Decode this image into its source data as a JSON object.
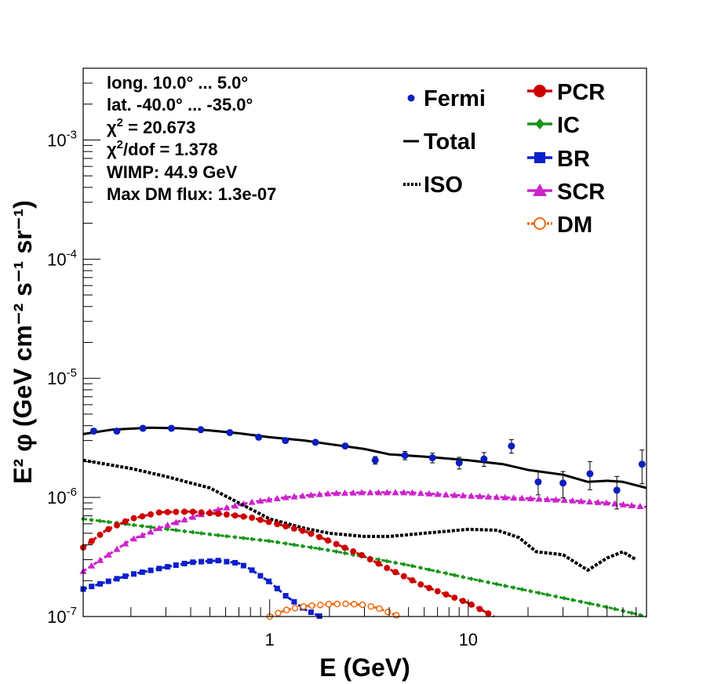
{
  "chart_data": {
    "type": "line",
    "xscale": "log",
    "yscale": "log",
    "xlim": [
      0.115,
      79
    ],
    "ylim": [
      1e-07,
      0.004
    ],
    "xlabel": "E (GeV)",
    "ylabel": "E² φ (GeV cm⁻² s⁻¹ sr⁻¹)",
    "x_tick_labels": [
      {
        "value": 1,
        "label": "1"
      },
      {
        "value": 10,
        "label": "10"
      }
    ],
    "y_tick_labels": [
      {
        "value": 1e-07,
        "label": "10",
        "exp": "-7"
      },
      {
        "value": 1e-06,
        "label": "10",
        "exp": "-6"
      },
      {
        "value": 1e-05,
        "label": "10",
        "exp": "-5"
      },
      {
        "value": 0.0001,
        "label": "10",
        "exp": "-4"
      },
      {
        "value": 0.001,
        "label": "10",
        "exp": "-3"
      }
    ],
    "info": {
      "longitude": "long. 10.0° ... 5.0°",
      "latitude": "lat. -40.0° ... -35.0°",
      "chi2_sym": "χ",
      "chi2_sup": "2",
      "chi2_rest": " = 20.673",
      "chidof_sym": "χ",
      "chidof_sup": "2",
      "chidof_rest": "/dof = 1.378",
      "wimp": "WIMP: 44.9 GeV",
      "max_dm": "Max DM flux: 1.3e-07"
    },
    "legend": [
      {
        "key": "fermi",
        "label": "Fermi",
        "color": "#0b1fbf",
        "style": "point"
      },
      {
        "key": "total",
        "label": "Total",
        "color": "#000000",
        "style": "line"
      },
      {
        "key": "iso",
        "label": "ISO",
        "color": "#000000",
        "style": "dotted"
      },
      {
        "key": "pcr",
        "label": "PCR",
        "color": "#cc0000",
        "style": "circle"
      },
      {
        "key": "ic",
        "label": "IC",
        "color": "#189418",
        "style": "diamond"
      },
      {
        "key": "br",
        "label": "BR",
        "color": "#0b1fcc",
        "style": "square"
      },
      {
        "key": "scr",
        "label": "SCR",
        "color": "#cc22cc",
        "style": "triangle"
      },
      {
        "key": "dm",
        "label": "DM",
        "color": "#ee6a10",
        "style": "opencircle"
      }
    ],
    "fermi": {
      "name": "Fermi",
      "color": "#0b1fbf",
      "points": [
        {
          "x": 0.13,
          "y": 3.6e-06,
          "err": 1.2e-07
        },
        {
          "x": 0.17,
          "y": 3.6e-06,
          "err": 1.2e-07
        },
        {
          "x": 0.23,
          "y": 3.8e-06,
          "err": 1.2e-07
        },
        {
          "x": 0.32,
          "y": 3.8e-06,
          "err": 1.2e-07
        },
        {
          "x": 0.45,
          "y": 3.7e-06,
          "err": 1.2e-07
        },
        {
          "x": 0.63,
          "y": 3.5e-06,
          "err": 1.2e-07
        },
        {
          "x": 0.88,
          "y": 3.2e-06,
          "err": 1.2e-07
        },
        {
          "x": 1.2,
          "y": 3e-06,
          "err": 1.2e-07
        },
        {
          "x": 1.7,
          "y": 2.9e-06,
          "err": 1.2e-07
        },
        {
          "x": 2.4,
          "y": 2.7e-06,
          "err": 1.2e-07
        },
        {
          "x": 3.4,
          "y": 2.05e-06,
          "err": 1.5e-07
        },
        {
          "x": 4.8,
          "y": 2.25e-06,
          "err": 1.8e-07
        },
        {
          "x": 6.6,
          "y": 2.15e-06,
          "err": 2e-07
        },
        {
          "x": 9.0,
          "y": 1.95e-06,
          "err": 2.2e-07
        },
        {
          "x": 12.0,
          "y": 2.1e-06,
          "err": 2.8e-07
        },
        {
          "x": 16.5,
          "y": 2.7e-06,
          "err": 3.5e-07
        },
        {
          "x": 22.5,
          "y": 1.35e-06,
          "err": 3e-07
        },
        {
          "x": 30.0,
          "y": 1.32e-06,
          "err": 3.3e-07
        },
        {
          "x": 41.0,
          "y": 1.58e-06,
          "err": 4.2e-07
        },
        {
          "x": 56.0,
          "y": 1.15e-06,
          "err": 3.5e-07
        },
        {
          "x": 75.0,
          "y": 1.9e-06,
          "err": 6e-07
        }
      ]
    },
    "series": [
      {
        "key": "total",
        "name": "Total",
        "color": "#000000",
        "x": [
          0.115,
          0.16,
          0.25,
          0.35,
          0.5,
          0.7,
          1.0,
          1.5,
          2.0,
          3.0,
          4.0,
          6.0,
          10.0,
          15.0,
          20.0,
          30.0,
          40.0,
          50.0,
          60.0,
          79.0
        ],
        "y": [
          3.4e-06,
          3.7e-06,
          3.85e-06,
          3.8e-06,
          3.65e-06,
          3.45e-06,
          3.2e-06,
          3e-06,
          2.8e-06,
          2.55e-06,
          2.3e-06,
          2.2e-06,
          2.05e-06,
          1.9e-06,
          1.7e-06,
          1.55e-06,
          1.35e-06,
          1.38e-06,
          1.35e-06,
          1.2e-06
        ]
      },
      {
        "key": "iso",
        "name": "ISO",
        "color": "#000000",
        "x": [
          0.115,
          0.2,
          0.3,
          0.5,
          0.7,
          1.0,
          1.5,
          2.0,
          3.0,
          4.0,
          6.0,
          10.0,
          14.0,
          18.0,
          22.0,
          30.0,
          40.0,
          50.0,
          60.0,
          70.0
        ],
        "y": [
          2.05e-06,
          1.75e-06,
          1.5e-06,
          1.2e-06,
          9e-07,
          6.6e-07,
          5.5e-07,
          5e-07,
          4.7e-07,
          4.7e-07,
          5e-07,
          5.4e-07,
          5.3e-07,
          4.6e-07,
          3.5e-07,
          3.3e-07,
          2.45e-07,
          3.1e-07,
          3.5e-07,
          3e-07
        ]
      },
      {
        "key": "pcr",
        "name": "PCR",
        "color": "#cc0000",
        "x": [
          0.115,
          0.15,
          0.2,
          0.28,
          0.4,
          0.6,
          0.8,
          1.0,
          1.5,
          2.0,
          3.0,
          4.0,
          6.0,
          8.0,
          10.0,
          13.5
        ],
        "y": [
          3.8e-07,
          5.3e-07,
          6.6e-07,
          7.5e-07,
          7.6e-07,
          7.2e-07,
          6.8e-07,
          6.2e-07,
          5.2e-07,
          4.3e-07,
          3.2e-07,
          2.5e-07,
          1.8e-07,
          1.5e-07,
          1.3e-07,
          1e-07
        ]
      },
      {
        "key": "ic",
        "name": "IC",
        "color": "#189418",
        "x": [
          0.115,
          0.2,
          0.5,
          1.0,
          2.0,
          5.0,
          10.0,
          20.0,
          50.0,
          79.0
        ],
        "y": [
          6.6e-07,
          5.9e-07,
          4.9e-07,
          4.3e-07,
          3.6e-07,
          2.7e-07,
          2.1e-07,
          1.65e-07,
          1.2e-07,
          1e-07
        ]
      },
      {
        "key": "br",
        "name": "BR",
        "color": "#0b1fcc",
        "x": [
          0.115,
          0.15,
          0.2,
          0.3,
          0.4,
          0.55,
          0.7,
          0.8,
          1.0,
          1.2,
          1.5,
          1.8
        ],
        "y": [
          1.7e-07,
          1.95e-07,
          2.25e-07,
          2.6e-07,
          2.85e-07,
          2.95e-07,
          2.8e-07,
          2.5e-07,
          1.95e-07,
          1.5e-07,
          1.15e-07,
          1e-07
        ]
      },
      {
        "key": "scr",
        "name": "SCR",
        "color": "#cc22cc",
        "x": [
          0.115,
          0.15,
          0.2,
          0.3,
          0.5,
          0.8,
          1.2,
          2.0,
          3.0,
          5.0,
          8.0,
          15.0,
          30.0,
          50.0,
          79.0
        ],
        "y": [
          2.4e-07,
          3.2e-07,
          4.4e-07,
          5.8e-07,
          7.6e-07,
          9.1e-07,
          1e-06,
          1.08e-06,
          1.1e-06,
          1.1e-06,
          1.05e-06,
          1e-06,
          9.5e-07,
          9e-07,
          8.3e-07
        ]
      },
      {
        "key": "dm",
        "name": "DM",
        "color": "#ee6a10",
        "x": [
          1.0,
          1.2,
          1.5,
          2.0,
          2.5,
          3.0,
          3.5,
          4.0,
          4.5
        ],
        "y": [
          1e-07,
          1.13e-07,
          1.22e-07,
          1.27e-07,
          1.28e-07,
          1.25e-07,
          1.18e-07,
          1.08e-07,
          1e-07
        ]
      }
    ]
  }
}
